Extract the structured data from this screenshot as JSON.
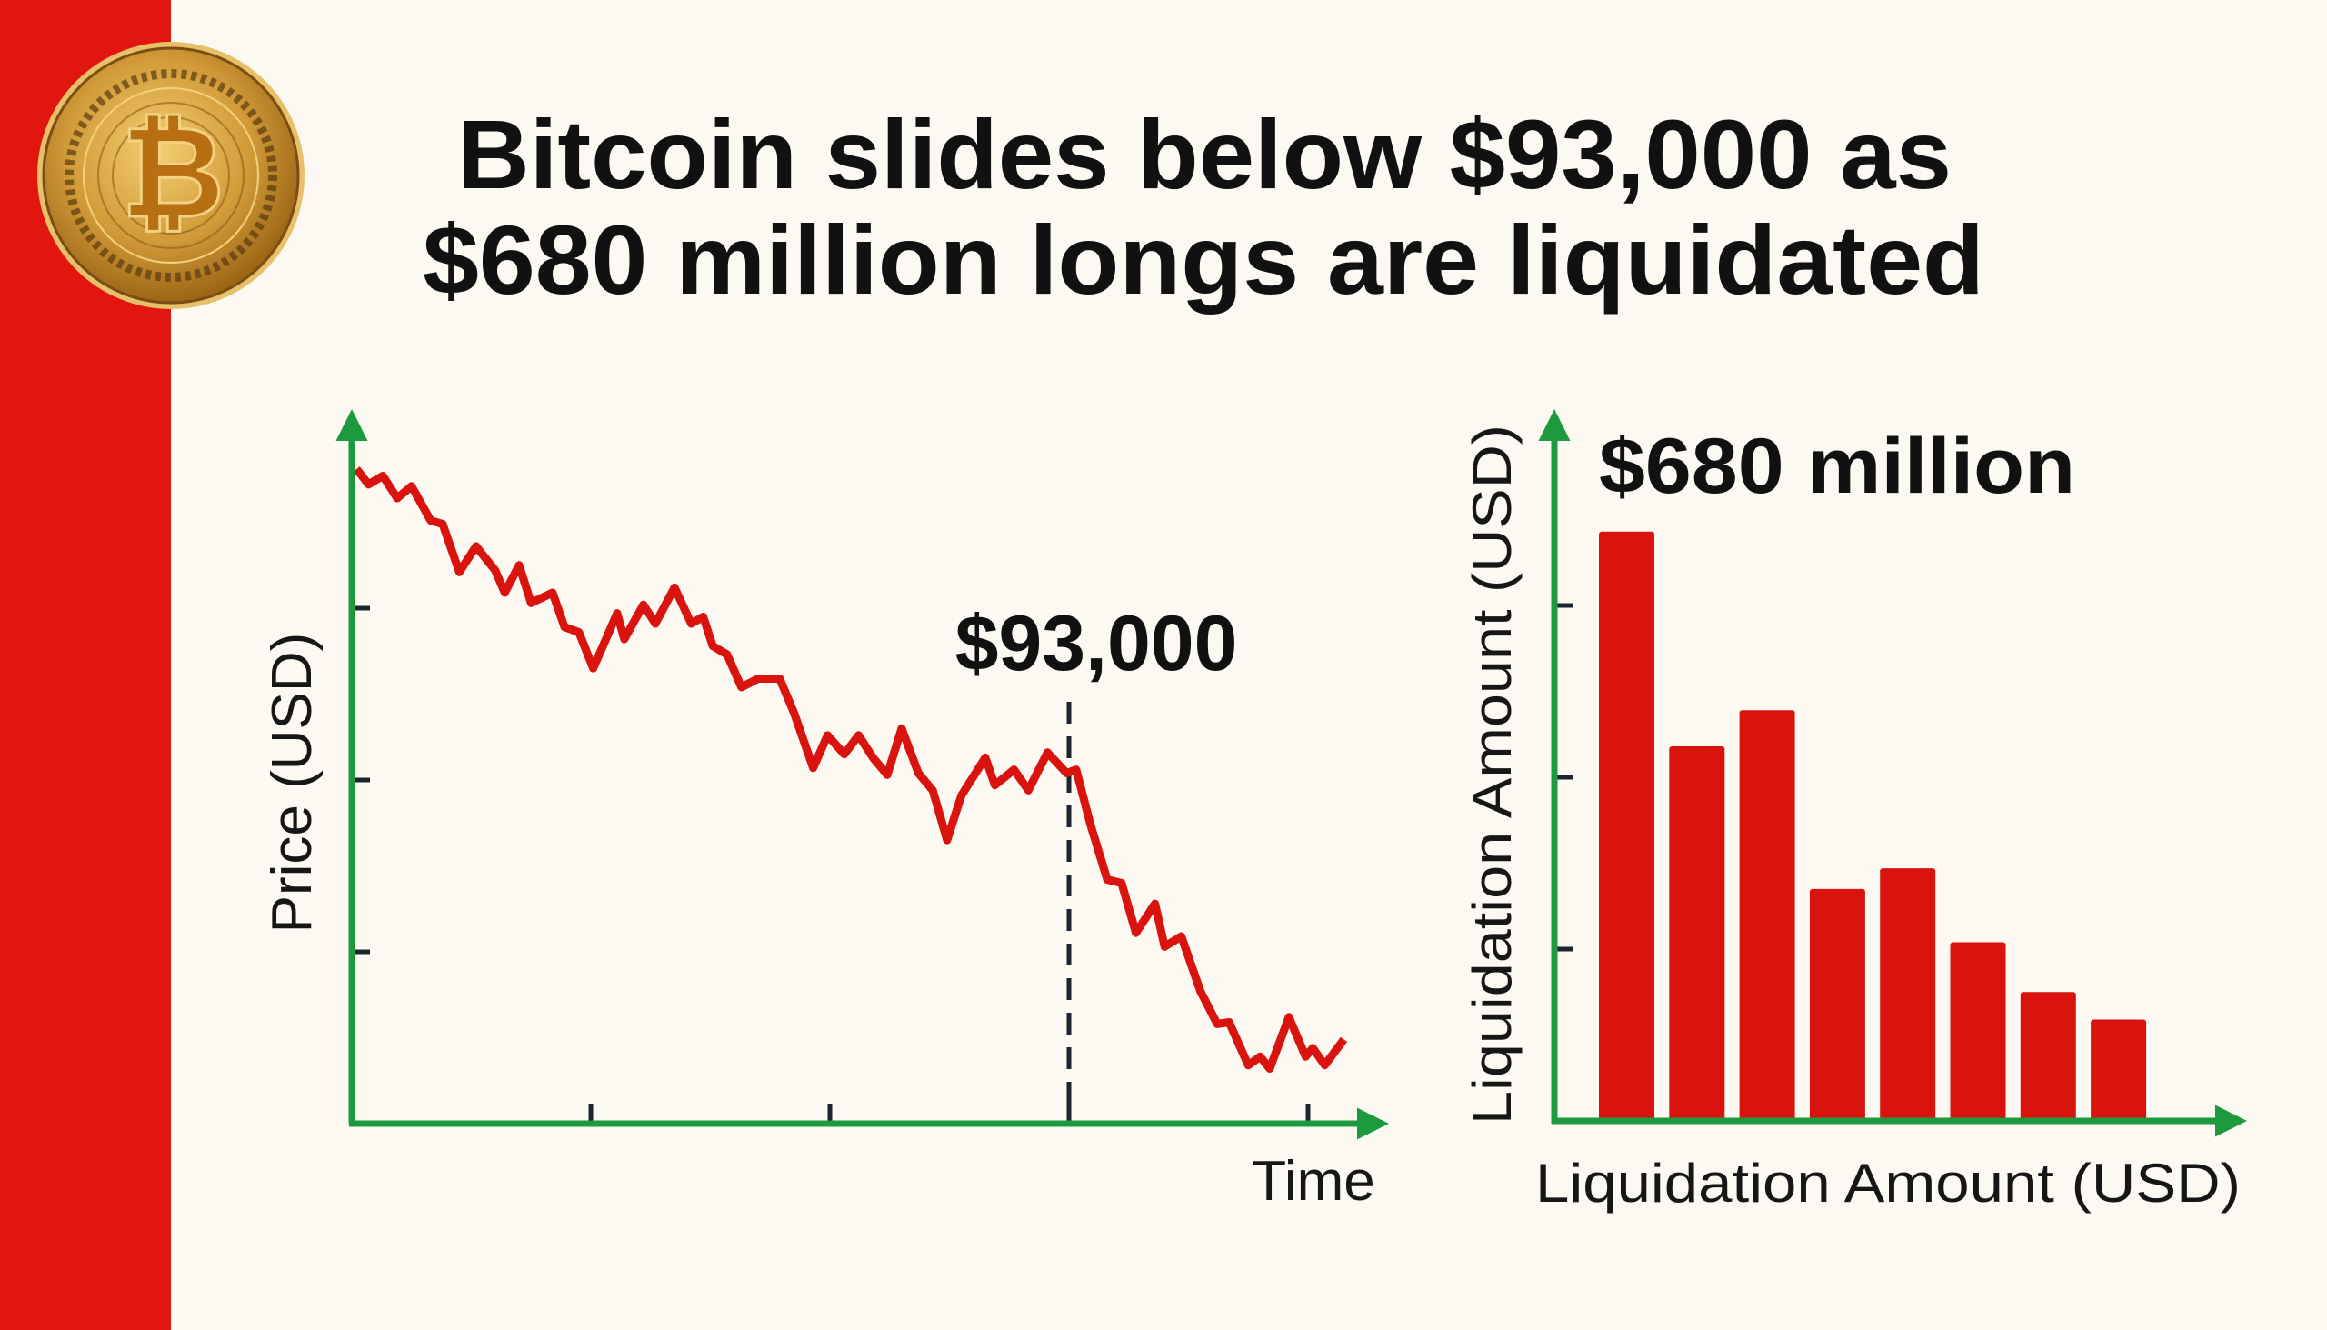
{
  "title": {
    "line1": "Bitcoin slides below $93,000 as",
    "line2": "$680 million longs are liquidated"
  },
  "logo": {
    "icon": "bitcoin-coin-icon"
  },
  "colors": {
    "accent_bar": "#e0160f",
    "axis": "#1e9a3e",
    "series": "#d9140e",
    "background": "#fbf9f1"
  },
  "chart_data": [
    {
      "type": "line",
      "ylabel": "Price (USD)",
      "xlabel": "Time",
      "tick_labels_shown": false,
      "grid": false,
      "axis_arrows": true,
      "annotation": {
        "label": "$93,000",
        "x": 3,
        "style": "dashed-vertical-line"
      },
      "series": [
        {
          "x": [
            0.02,
            0.07,
            0.13,
            0.19,
            0.25,
            0.33,
            0.38,
            0.45,
            0.52,
            0.6,
            0.64,
            0.7,
            0.75,
            0.84,
            0.89,
            0.95,
            1.01,
            1.11,
            1.14,
            1.22,
            1.27,
            1.35,
            1.42,
            1.47,
            1.51,
            1.57,
            1.63,
            1.7,
            1.79,
            1.85,
            1.93,
            1.99,
            2.06,
            2.12,
            2.18,
            2.24,
            2.3,
            2.37,
            2.43,
            2.49,
            2.55,
            2.65,
            2.69,
            2.77,
            2.83,
            2.91,
            2.99,
            3.03,
            3.09,
            3.16,
            3.22,
            3.28,
            3.36,
            3.4,
            3.47,
            3.55,
            3.62,
            3.67,
            3.75,
            3.8,
            3.84,
            3.92,
            3.99,
            4.02,
            4.07,
            4.15
          ],
          "y": [
            3.81,
            3.72,
            3.77,
            3.64,
            3.71,
            3.51,
            3.49,
            3.21,
            3.36,
            3.22,
            3.09,
            3.25,
            3.03,
            3.09,
            2.89,
            2.86,
            2.65,
            2.97,
            2.82,
            3.02,
            2.91,
            3.12,
            2.91,
            2.95,
            2.78,
            2.73,
            2.54,
            2.59,
            2.59,
            2.39,
            2.07,
            2.26,
            2.15,
            2.26,
            2.13,
            2.03,
            2.3,
            2.04,
            1.94,
            1.65,
            1.91,
            2.13,
            1.97,
            2.06,
            1.94,
            2.16,
            2.04,
            2.06,
            1.74,
            1.42,
            1.4,
            1.11,
            1.28,
            1.03,
            1.09,
            0.77,
            0.58,
            0.59,
            0.34,
            0.39,
            0.32,
            0.62,
            0.39,
            0.44,
            0.34,
            0.49
          ]
        }
      ],
      "xlim": [
        0,
        4.45
      ],
      "ylim": [
        0,
        4.2
      ],
      "x_ticks": [
        1,
        2,
        3,
        4
      ],
      "y_ticks": [
        1,
        2,
        3
      ]
    },
    {
      "type": "bar",
      "annotation": {
        "label": "$680 million"
      },
      "ylabel": "Liquidation Amount (USD)",
      "xlabel": "Liquidation Amount (USD)",
      "tick_labels_shown": false,
      "grid": false,
      "axis_arrows": true,
      "values": [
        3.43,
        2.18,
        2.39,
        1.35,
        1.47,
        1.04,
        0.75,
        0.59
      ],
      "ylim": [
        0,
        4.2
      ],
      "y_ticks": [
        1,
        2,
        3
      ]
    }
  ]
}
